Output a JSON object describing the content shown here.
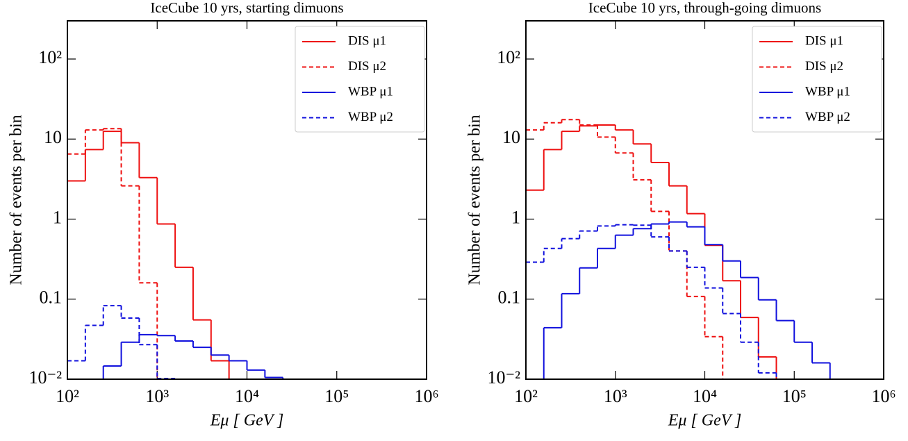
{
  "chart_data": [
    {
      "type": "histogram",
      "title": "IceCube 10 yrs, starting dimuons",
      "xlabel": "Eμ  [ GeV ]",
      "ylabel": "Number of events per bin",
      "xscale": "log",
      "yscale": "log",
      "legend": "upper right",
      "xlim": [
        100,
        1000000
      ],
      "ylim": [
        0.01,
        300
      ],
      "xticks": [
        {
          "value": 100,
          "label": "10²"
        },
        {
          "value": 1000,
          "label": "10³"
        },
        {
          "value": 10000,
          "label": "10⁴"
        },
        {
          "value": 100000,
          "label": "10⁵"
        },
        {
          "value": 1000000,
          "label": "10⁶"
        }
      ],
      "yticks": [
        {
          "value": 0.01,
          "label": "10⁻²"
        },
        0.1,
        1,
        10,
        {
          "value": 100,
          "label": "10²"
        }
      ],
      "bins": [
        100,
        158.5,
        251.2,
        398.1,
        631,
        1000,
        1585,
        2512,
        3981,
        6310,
        10000,
        15850,
        25120,
        39810,
        63100,
        100000,
        158500,
        251200,
        398100,
        631000,
        1000000
      ],
      "series": [
        {
          "name": "DIS μ1",
          "color": "#ee1111",
          "linestyle": "solid",
          "values": [
            3,
            7.4,
            12.5,
            9,
            3.3,
            0.87,
            0.25,
            0.055,
            0.017,
            null,
            null,
            null,
            null,
            null,
            null,
            null,
            null,
            null,
            null,
            null
          ]
        },
        {
          "name": "DIS μ2",
          "color": "#ee1111",
          "linestyle": "dashed",
          "values": [
            6.5,
            13,
            13.5,
            2.6,
            0.16,
            null,
            null,
            null,
            null,
            null,
            null,
            null,
            null,
            null,
            null,
            null,
            null,
            null,
            null,
            null
          ]
        },
        {
          "name": "WBP μ1",
          "color": "#1111dd",
          "linestyle": "solid",
          "values": [
            null,
            null,
            0.0146,
            0.029,
            0.036,
            0.035,
            0.03,
            0.025,
            0.02,
            0.017,
            0.013,
            0.0105,
            null,
            null,
            null,
            null,
            null,
            null,
            null,
            null
          ]
        },
        {
          "name": "WBP μ2",
          "color": "#1111dd",
          "linestyle": "dashed",
          "values": [
            0.017,
            0.047,
            0.083,
            0.058,
            0.027,
            0.0102,
            null,
            null,
            null,
            null,
            null,
            null,
            null,
            null,
            null,
            null,
            null,
            null,
            null,
            null
          ]
        }
      ]
    },
    {
      "type": "histogram",
      "title": "IceCube 10 yrs, through-going dimuons",
      "xlabel": "Eμ  [ GeV ]",
      "ylabel": "Number of events per bin",
      "xscale": "log",
      "yscale": "log",
      "legend": "upper right",
      "xlim": [
        100,
        1000000
      ],
      "ylim": [
        0.01,
        300
      ],
      "xticks": [
        {
          "value": 100,
          "label": "10²"
        },
        {
          "value": 1000,
          "label": "10³"
        },
        {
          "value": 10000,
          "label": "10⁴"
        },
        {
          "value": 100000,
          "label": "10⁵"
        },
        {
          "value": 1000000,
          "label": "10⁶"
        }
      ],
      "yticks": [
        {
          "value": 0.01,
          "label": "10⁻²"
        },
        0.1,
        1,
        10,
        {
          "value": 100,
          "label": "10²"
        }
      ],
      "bins": [
        100,
        158.5,
        251.2,
        398.1,
        631,
        1000,
        1585,
        2512,
        3981,
        6310,
        10000,
        15850,
        25120,
        39810,
        63100,
        100000,
        158500,
        251200,
        398100,
        631000,
        1000000
      ],
      "series": [
        {
          "name": "DIS μ1",
          "color": "#ee1111",
          "linestyle": "solid",
          "values": [
            2.3,
            7.4,
            12.5,
            14.6,
            15,
            13,
            8.7,
            5.1,
            2.6,
            1.17,
            0.47,
            0.17,
            0.059,
            0.019,
            null,
            null,
            null,
            null,
            null,
            null
          ]
        },
        {
          "name": "DIS μ2",
          "color": "#ee1111",
          "linestyle": "dashed",
          "values": [
            13,
            16,
            17.5,
            15,
            10.6,
            6.7,
            3.1,
            1.25,
            0.4,
            0.108,
            0.034,
            null,
            null,
            null,
            null,
            null,
            null,
            null,
            null,
            null
          ]
        },
        {
          "name": "WBP μ1",
          "color": "#1111dd",
          "linestyle": "solid",
          "values": [
            null,
            0.044,
            0.117,
            0.246,
            0.43,
            0.63,
            0.76,
            0.87,
            0.92,
            0.8,
            0.48,
            0.3,
            0.186,
            0.098,
            0.054,
            0.029,
            0.016,
            null,
            null,
            null
          ]
        },
        {
          "name": "WBP μ2",
          "color": "#1111dd",
          "linestyle": "dashed",
          "values": [
            0.29,
            0.43,
            0.57,
            0.71,
            0.82,
            0.85,
            0.84,
            0.6,
            0.4,
            0.25,
            0.138,
            0.066,
            0.029,
            0.012,
            null,
            null,
            null,
            null,
            null,
            null
          ]
        }
      ]
    }
  ]
}
